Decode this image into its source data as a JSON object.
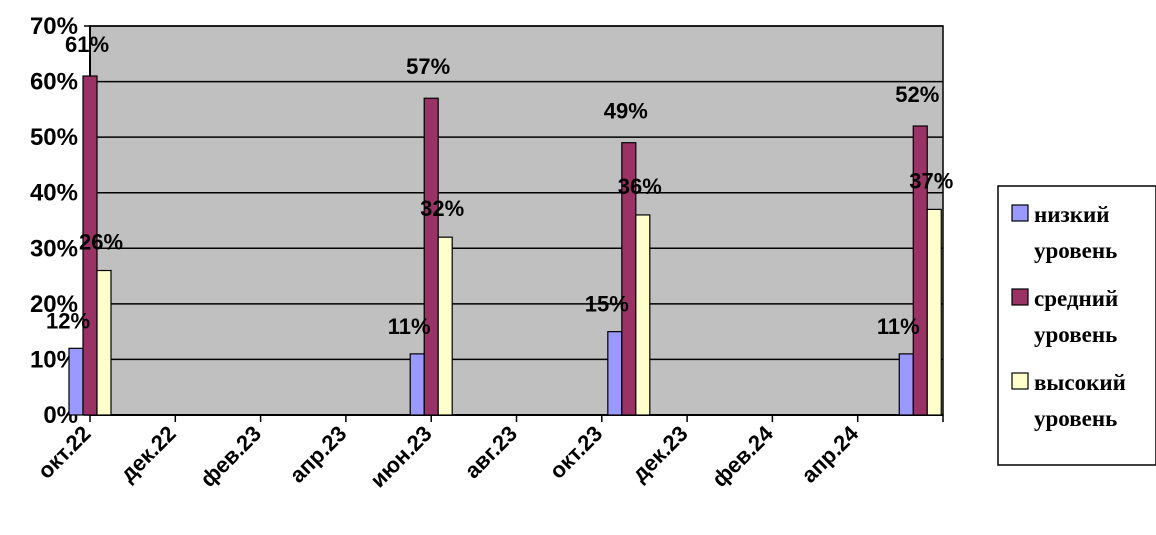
{
  "chart_data": {
    "type": "bar",
    "categories": [
      "окт.22",
      "дек.22",
      "фев.23",
      "апр.23",
      "июн.23",
      "авг.23",
      "окт.23",
      "дек.23",
      "фев.24",
      "апр.24"
    ],
    "y_tick_labels": [
      "0%",
      "10%",
      "20%",
      "30%",
      "40%",
      "50%",
      "60%",
      "70%"
    ],
    "ylim": [
      0,
      70
    ],
    "y_unit": "%",
    "grid": true,
    "plot_background": "#c0c0c0",
    "legend_position": "right",
    "series": [
      {
        "name": "низкий уровень",
        "legend_lines": [
          "низкий",
          "уровень"
        ],
        "color": "#9999ff",
        "points": [
          {
            "date": "2022-10-01",
            "value": 12,
            "label": "12%"
          },
          {
            "date": "2023-06-01",
            "value": 11,
            "label": "11%"
          },
          {
            "date": "2023-10-20",
            "value": 15,
            "label": "15%"
          },
          {
            "date": "2024-05-15",
            "value": 11,
            "label": "11%"
          }
        ]
      },
      {
        "name": "средний уровень",
        "legend_lines": [
          "средний",
          "уровень"
        ],
        "color": "#993366",
        "points": [
          {
            "date": "2022-10-01",
            "value": 61,
            "label": "61%"
          },
          {
            "date": "2023-06-01",
            "value": 57,
            "label": "57%"
          },
          {
            "date": "2023-10-20",
            "value": 49,
            "label": "49%"
          },
          {
            "date": "2024-05-15",
            "value": 52,
            "label": "52%"
          }
        ]
      },
      {
        "name": "высокий уровень",
        "legend_lines": [
          "высокий",
          "уровень"
        ],
        "color": "#ffffcc",
        "points": [
          {
            "date": "2022-10-01",
            "value": 26,
            "label": "26%"
          },
          {
            "date": "2023-06-01",
            "value": 32,
            "label": "32%"
          },
          {
            "date": "2023-10-20",
            "value": 36,
            "label": "36%"
          },
          {
            "date": "2024-05-15",
            "value": 37,
            "label": "37%"
          }
        ]
      }
    ]
  }
}
